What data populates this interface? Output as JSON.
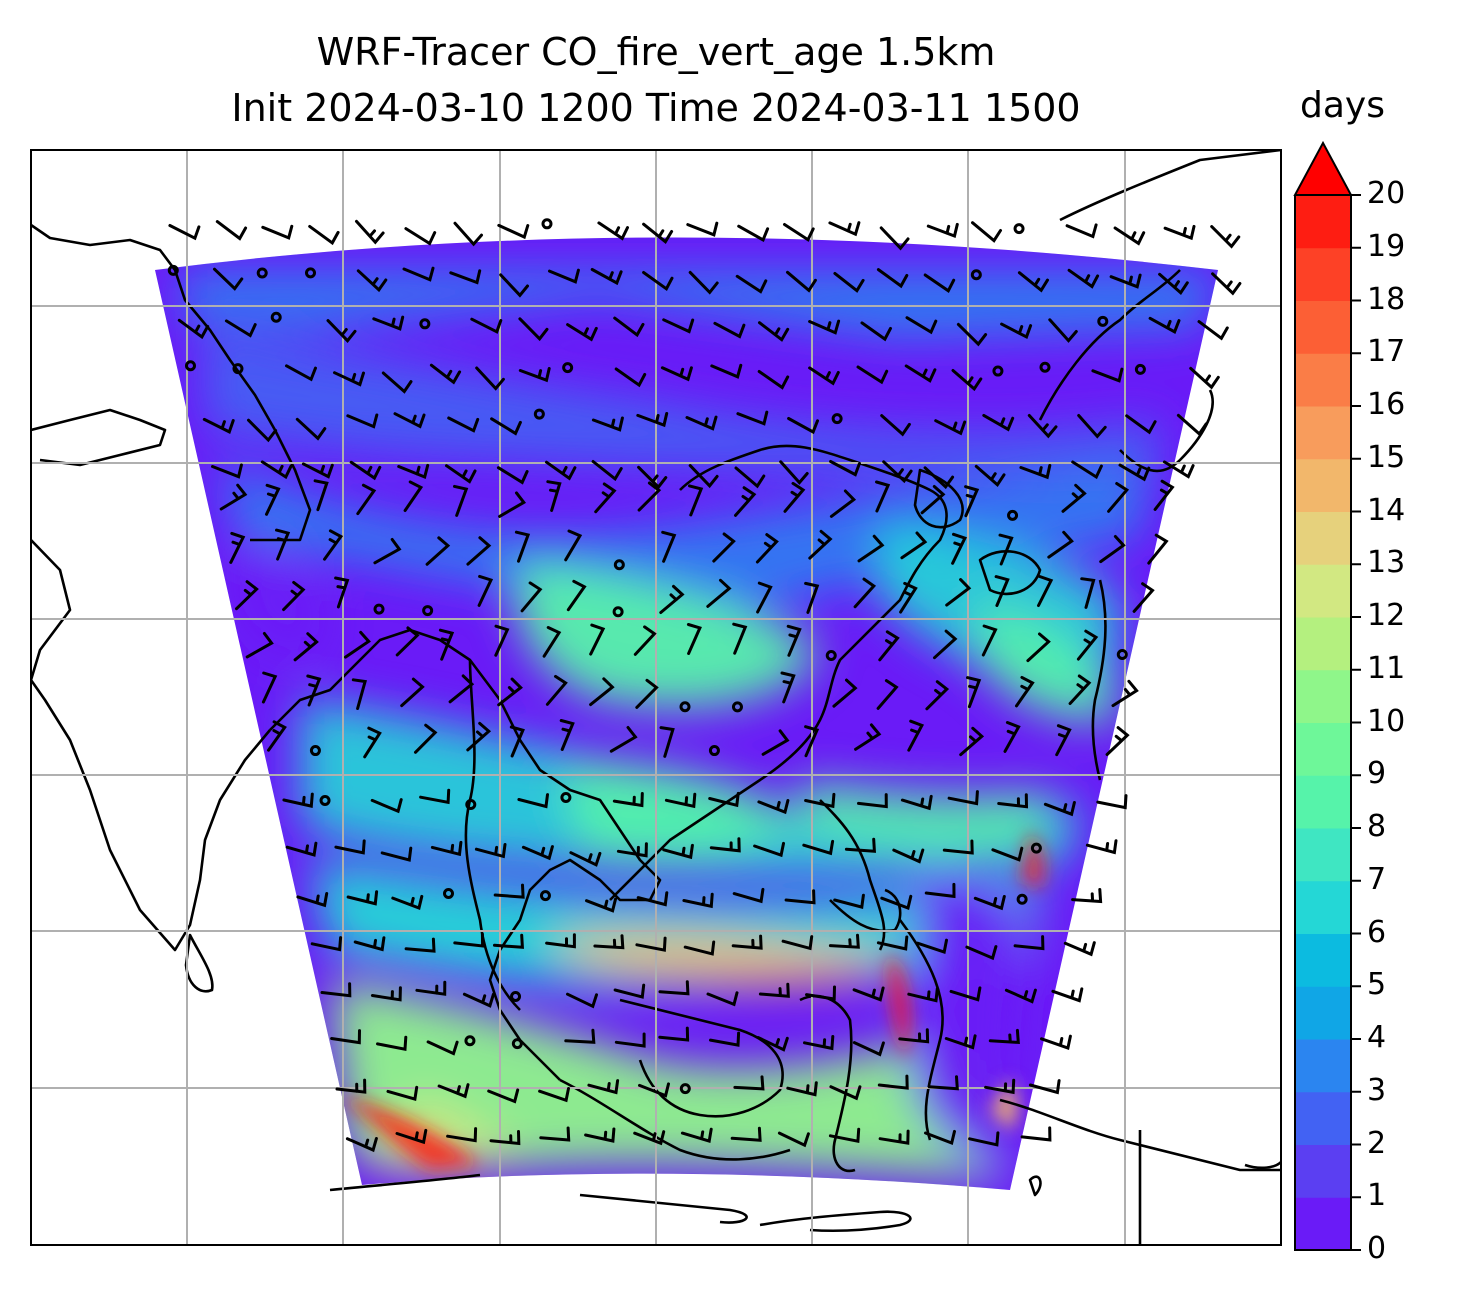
{
  "title": {
    "line1": "WRF-Tracer CO_fire_vert_age 1.5km",
    "line2": "Init 2024-03-10 1200 Time 2024-03-11 1500"
  },
  "colorbar": {
    "unit": "days",
    "min": 0,
    "max": 20,
    "extend": "max",
    "ticks": [
      "0",
      "1",
      "2",
      "3",
      "4",
      "5",
      "6",
      "7",
      "8",
      "9",
      "10",
      "11",
      "12",
      "13",
      "14",
      "15",
      "16",
      "17",
      "18",
      "19",
      "20"
    ],
    "colors": [
      "#6a1bf7",
      "#5b3ff2",
      "#4262f3",
      "#2b85f0",
      "#10a6e6",
      "#0cbbe0",
      "#24d7d6",
      "#3fe6c2",
      "#56f3aa",
      "#6ef799",
      "#8ff68a",
      "#b4f07f",
      "#d2e882",
      "#e6d17c",
      "#f2b76b",
      "#f89c5c",
      "#fa7d47",
      "#fc5f35",
      "#fd4126",
      "#fe1d12"
    ],
    "over_color": "#ff0000"
  },
  "map": {
    "gridlines": true,
    "field_palette": {
      "background_low": "#6a1bf7",
      "band_mid": "#2b85f0",
      "band_high": "#56f3aa",
      "band_peak": "#f2b76b"
    },
    "wind_barbs": true,
    "coastlines": true
  }
}
